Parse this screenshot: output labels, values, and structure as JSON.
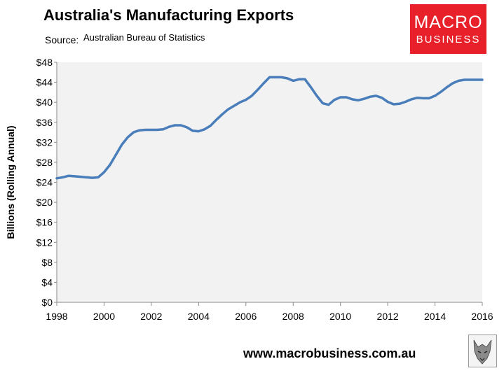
{
  "header": {
    "title": "Australia's Manufacturing Exports",
    "source_label": "Source:",
    "source_value": "Australian Bureau of Statistics"
  },
  "logo": {
    "line1": "MACRO",
    "line2": "BUSINESS",
    "color": "#e8202a",
    "text_color": "#ffffff"
  },
  "footer": {
    "url": "www.macrobusiness.com.au",
    "emblem_icon": "wolf-emblem-icon"
  },
  "chart_data": {
    "type": "line",
    "title": "Australia's Manufacturing Exports",
    "xlabel": "",
    "ylabel": "Billions (Rolling Annual)",
    "xlim": [
      1998,
      2016
    ],
    "ylim": [
      0,
      48
    ],
    "x_ticks": [
      1998,
      2000,
      2002,
      2004,
      2006,
      2008,
      2010,
      2012,
      2014,
      2016
    ],
    "x_tick_labels": [
      "1998",
      "2000",
      "2002",
      "2004",
      "2006",
      "2008",
      "2010",
      "2012",
      "2014",
      "2016"
    ],
    "y_ticks": [
      0,
      4,
      8,
      12,
      16,
      20,
      24,
      28,
      32,
      36,
      40,
      44,
      48
    ],
    "y_tick_labels": [
      "$0",
      "$4",
      "$8",
      "$12",
      "$16",
      "$20",
      "$24",
      "$28",
      "$32",
      "$36",
      "$40",
      "$44",
      "$48"
    ],
    "grid": false,
    "background_color": "#f2f2f2",
    "line_color": "#4a7ebb",
    "series": [
      {
        "name": "Manufacturing Exports",
        "x": [
          1998.0,
          1998.25,
          1998.5,
          1998.75,
          1999.0,
          1999.25,
          1999.5,
          1999.75,
          2000.0,
          2000.25,
          2000.5,
          2000.75,
          2001.0,
          2001.25,
          2001.5,
          2001.75,
          2002.0,
          2002.25,
          2002.5,
          2002.75,
          2003.0,
          2003.25,
          2003.5,
          2003.75,
          2004.0,
          2004.25,
          2004.5,
          2004.75,
          2005.0,
          2005.25,
          2005.5,
          2005.75,
          2006.0,
          2006.25,
          2006.5,
          2006.75,
          2007.0,
          2007.25,
          2007.5,
          2007.75,
          2008.0,
          2008.25,
          2008.5,
          2008.75,
          2009.0,
          2009.25,
          2009.5,
          2009.75,
          2010.0,
          2010.25,
          2010.5,
          2010.75,
          2011.0,
          2011.25,
          2011.5,
          2011.75,
          2012.0,
          2012.25,
          2012.5,
          2012.75,
          2013.0,
          2013.25,
          2013.5,
          2013.75,
          2014.0,
          2014.25,
          2014.5,
          2014.75,
          2015.0,
          2015.25,
          2015.5,
          2015.75,
          2016.0
        ],
        "values": [
          24.8,
          25.0,
          25.3,
          25.2,
          25.1,
          25.0,
          24.9,
          25.0,
          26.0,
          27.5,
          29.5,
          31.5,
          33.0,
          34.0,
          34.4,
          34.5,
          34.5,
          34.5,
          34.6,
          35.1,
          35.4,
          35.4,
          35.0,
          34.3,
          34.2,
          34.6,
          35.3,
          36.5,
          37.6,
          38.6,
          39.3,
          40.0,
          40.5,
          41.3,
          42.5,
          43.8,
          45.0,
          45.0,
          45.0,
          44.8,
          44.3,
          44.6,
          44.6,
          43.0,
          41.3,
          39.8,
          39.5,
          40.5,
          41.0,
          41.0,
          40.6,
          40.4,
          40.7,
          41.1,
          41.3,
          40.9,
          40.1,
          39.6,
          39.7,
          40.1,
          40.6,
          40.9,
          40.8,
          40.8,
          41.3,
          42.1,
          43.0,
          43.8,
          44.3,
          44.5,
          44.5,
          44.5,
          44.5
        ]
      }
    ]
  }
}
